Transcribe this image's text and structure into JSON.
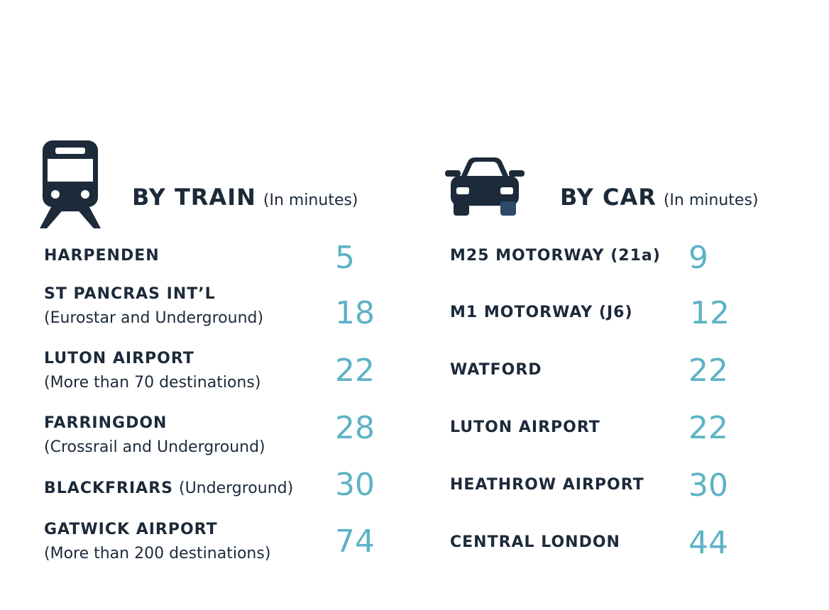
{
  "train": {
    "heading": "BY TRAIN",
    "note": "(In minutes)",
    "icon": "train-icon",
    "rows": [
      {
        "title": "HARPENDEN",
        "inline_note": "",
        "sub": "",
        "minutes": "5"
      },
      {
        "title": "ST PANCRAS INT’L",
        "inline_note": "",
        "sub": "(Eurostar and Underground)",
        "minutes": "18"
      },
      {
        "title": "LUTON AIRPORT",
        "inline_note": "",
        "sub": "(More than 70 destinations)",
        "minutes": "22"
      },
      {
        "title": "FARRINGDON",
        "inline_note": "",
        "sub": "(Crossrail and Underground)",
        "minutes": "28"
      },
      {
        "title": "BLACKFRIARS",
        "inline_note": "(Underground)",
        "sub": "",
        "minutes": "30"
      },
      {
        "title": "GATWICK AIRPORT",
        "inline_note": "",
        "sub": "(More than 200 destinations)",
        "minutes": "74"
      }
    ]
  },
  "car": {
    "heading": "BY CAR",
    "note": "(In minutes)",
    "icon": "car-icon",
    "rows": [
      {
        "title": "M25 MOTORWAY (21a)",
        "minutes": "9"
      },
      {
        "title": "M1 MOTORWAY (J6)",
        "minutes": "12"
      },
      {
        "title": "WATFORD",
        "minutes": "22"
      },
      {
        "title": "LUTON AIRPORT",
        "minutes": "22"
      },
      {
        "title": "HEATHROW AIRPORT",
        "minutes": "30"
      },
      {
        "title": "CENTRAL LONDON",
        "minutes": "44"
      }
    ]
  },
  "colors": {
    "text": "#1c2a3a",
    "accent": "#5cb3c4"
  }
}
